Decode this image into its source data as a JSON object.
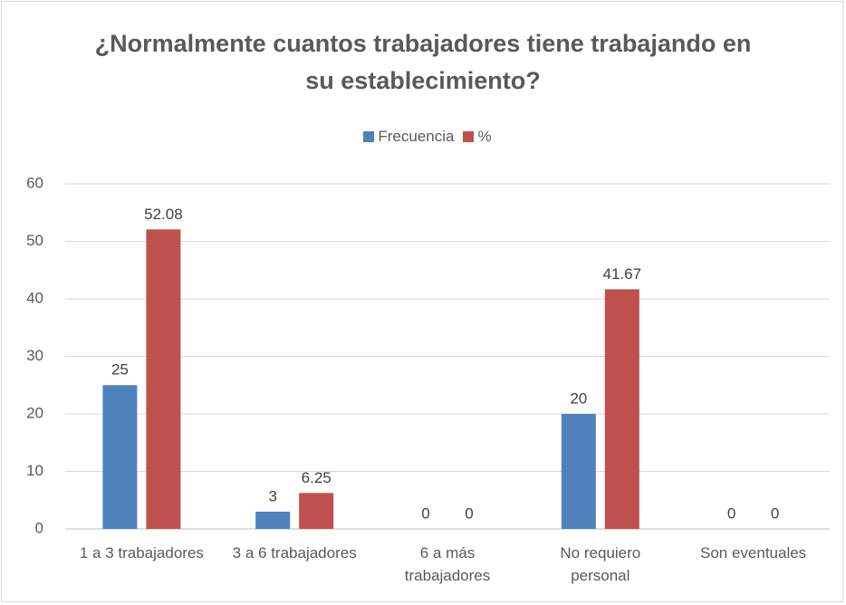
{
  "chart_data": {
    "type": "bar",
    "title": "¿Normalmente cuantos trabajadores tiene trabajando en su establecimiento?",
    "categories": [
      "1 a 3 trabajadores",
      "3 a 6 trabajadores",
      "6 a más trabajadores",
      "No requiero personal",
      "Son eventuales"
    ],
    "series": [
      {
        "name": "Frecuencia",
        "color": "#4f81bd",
        "values": [
          25,
          3,
          0,
          20,
          0
        ]
      },
      {
        "name": "%",
        "color": "#c0504d",
        "values": [
          52.08,
          6.25,
          0,
          41.67,
          0
        ]
      }
    ],
    "ylim": [
      0,
      60
    ],
    "yticks": [
      0,
      10,
      20,
      30,
      40,
      50,
      60
    ],
    "grid": true,
    "legend": "top"
  }
}
